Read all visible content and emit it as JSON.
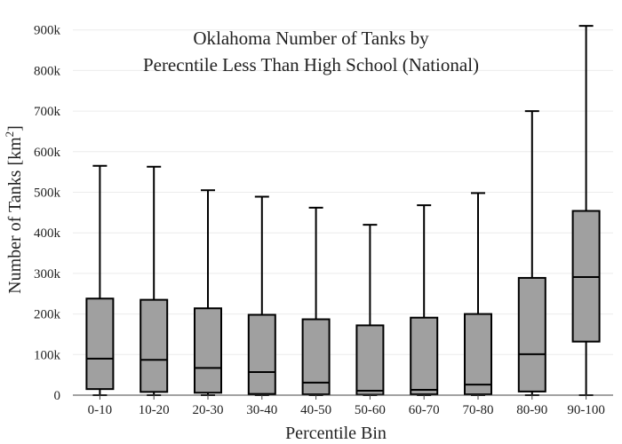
{
  "chart_data": {
    "type": "box",
    "title_lines": [
      "Oklahoma Number of Tanks by",
      "Perecntile Less Than High School (National)"
    ],
    "xlabel": "Percentile Bin",
    "ylabel": "Number of Tanks  [km",
    "ylabel_sup": "2",
    "ylabel_close": "]",
    "ylim": [
      0,
      930000
    ],
    "y_ticks": [
      0,
      100000,
      200000,
      300000,
      400000,
      500000,
      600000,
      700000,
      800000,
      900000
    ],
    "y_tick_labels": [
      "0",
      "100k",
      "200k",
      "300k",
      "400k",
      "500k",
      "600k",
      "700k",
      "800k",
      "900k"
    ],
    "categories": [
      "0-10",
      "10-20",
      "20-30",
      "30-40",
      "40-50",
      "50-60",
      "60-70",
      "70-80",
      "80-90",
      "90-100"
    ],
    "boxes": [
      {
        "min": 0,
        "q1": 15000,
        "median": 90000,
        "q3": 238000,
        "max": 565000
      },
      {
        "min": 0,
        "q1": 8000,
        "median": 87000,
        "q3": 235000,
        "max": 563000
      },
      {
        "min": 0,
        "q1": 6000,
        "median": 67000,
        "q3": 214000,
        "max": 505000
      },
      {
        "min": 0,
        "q1": 3000,
        "median": 57000,
        "q3": 198000,
        "max": 489000
      },
      {
        "min": 0,
        "q1": 2000,
        "median": 31000,
        "q3": 187000,
        "max": 462000
      },
      {
        "min": 0,
        "q1": 1000,
        "median": 11000,
        "q3": 172000,
        "max": 420000
      },
      {
        "min": 0,
        "q1": 2000,
        "median": 13000,
        "q3": 191000,
        "max": 468000
      },
      {
        "min": 0,
        "q1": 2000,
        "median": 26000,
        "q3": 200000,
        "max": 498000
      },
      {
        "min": 0,
        "q1": 9000,
        "median": 101000,
        "q3": 289000,
        "max": 700000
      },
      {
        "min": 0,
        "q1": 132000,
        "median": 291000,
        "q3": 454000,
        "max": 910000
      }
    ],
    "box_color": "#a0a0a0",
    "line_color": "#000000",
    "grid": true,
    "legend": false
  }
}
